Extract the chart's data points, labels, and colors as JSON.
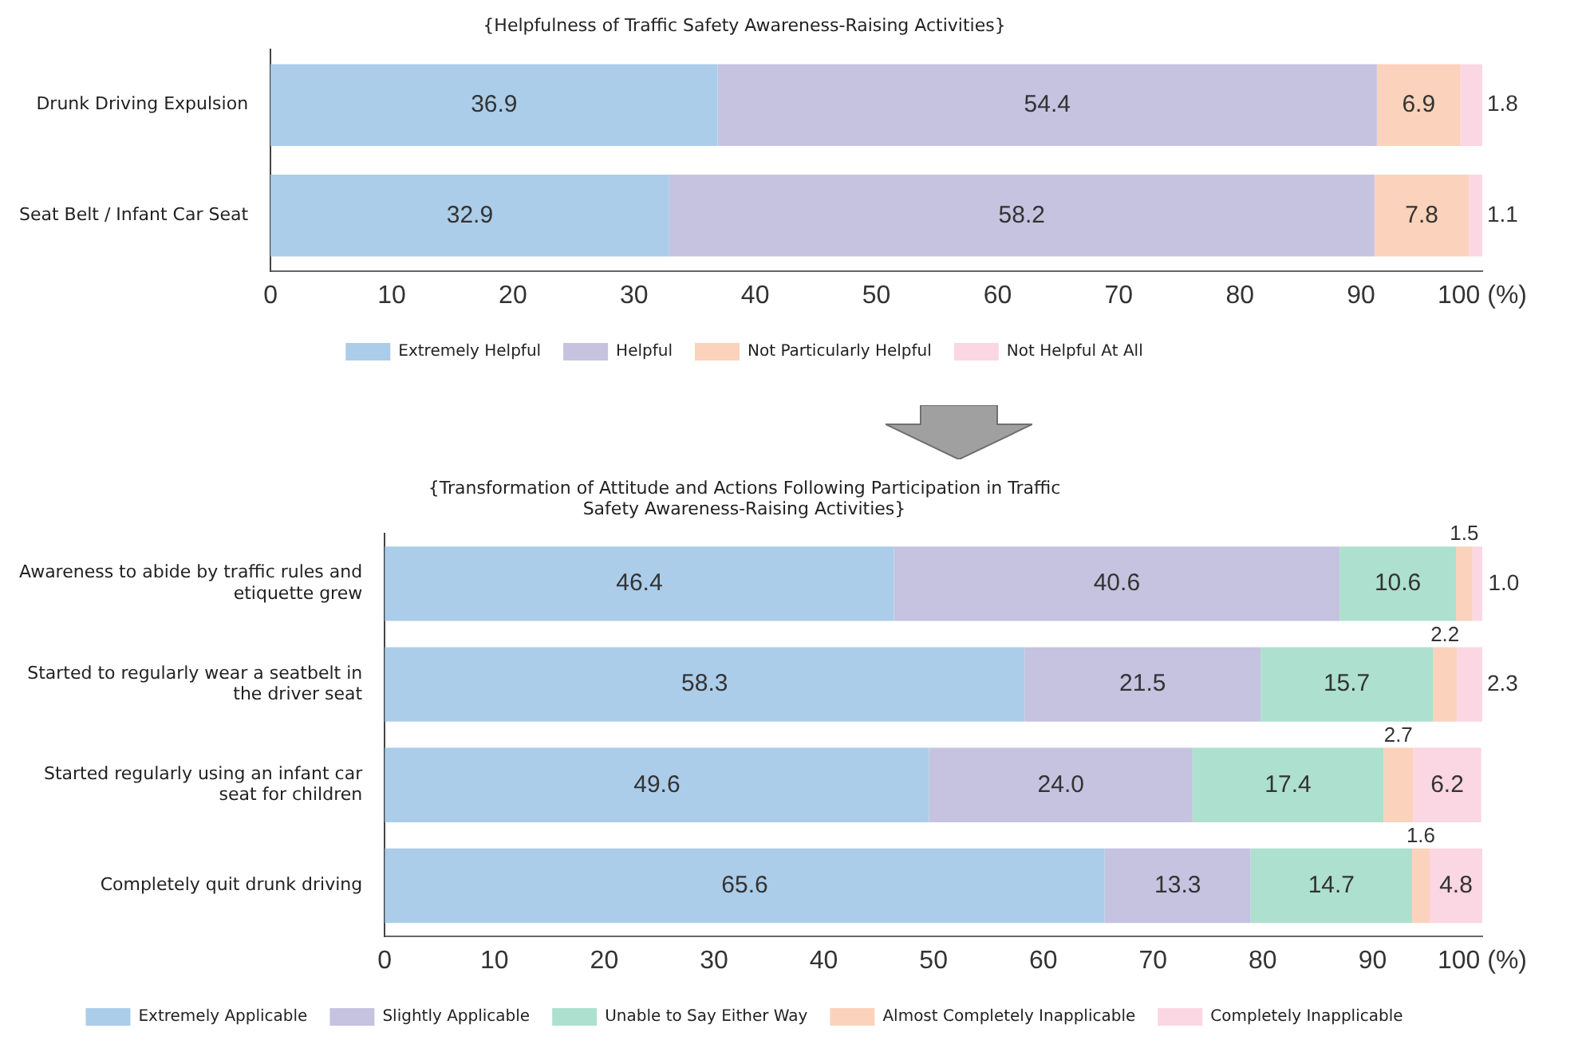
{
  "chart_data": [
    {
      "type": "bar",
      "orientation": "horizontal",
      "stacked": true,
      "title": "{Helpfulness of Traffic Safety Awareness-Raising Activities}",
      "categories": [
        "Drunk Driving Expulsion",
        "Seat Belt / Infant Car Seat"
      ],
      "series": [
        {
          "name": "Extremely Helpful",
          "color": "#abcdea",
          "values": [
            36.9,
            32.9
          ],
          "value_labels": [
            "36.9",
            "32.9"
          ]
        },
        {
          "name": "Helpful",
          "color": "#c5c3e0",
          "values": [
            54.4,
            58.2
          ],
          "value_labels": [
            "54.4",
            "58.2"
          ]
        },
        {
          "name": "Not Particularly Helpful",
          "color": "#fbd2bb",
          "values": [
            6.9,
            7.8
          ],
          "value_labels": [
            "6.9",
            "7.8"
          ]
        },
        {
          "name": "Not Helpful At All",
          "color": "#fbd6e3",
          "values": [
            1.8,
            1.1
          ],
          "value_labels": [
            "1.8",
            "1.1"
          ]
        }
      ],
      "xlim": [
        0,
        100
      ],
      "xticks": [
        0,
        10,
        20,
        30,
        40,
        50,
        60,
        70,
        80,
        90,
        {
          "value": 100,
          "label": "100 (%)"
        }
      ],
      "grid": false,
      "legend": "bottom"
    },
    {
      "type": "bar",
      "orientation": "horizontal",
      "stacked": true,
      "title": "{Transformation of Attitude and Actions Following Participation in Traffic Safety Awareness-Raising Activities}",
      "categories": [
        "Awareness to abide by traffic rules and etiquette grew",
        "Started to regularly wear a seatbelt in the driver seat",
        "Started regularly using an infant car seat for children",
        "Completely quit drunk driving"
      ],
      "series": [
        {
          "name": "Extremely Applicable",
          "color": "#abcdea",
          "values": [
            46.4,
            58.3,
            49.6,
            65.6
          ],
          "value_labels": [
            "46.4",
            "58.3",
            "49.6",
            "65.6"
          ]
        },
        {
          "name": "Slightly Applicable",
          "color": "#c5c3e0",
          "values": [
            40.6,
            21.5,
            24.0,
            13.3
          ],
          "value_labels": [
            "40.6",
            "21.5",
            "24.0",
            "13.3"
          ]
        },
        {
          "name": "Unable to Say Either Way",
          "color": "#ade0cf",
          "values": [
            10.6,
            15.7,
            17.4,
            14.7
          ],
          "value_labels": [
            "10.6",
            "15.7",
            "17.4",
            "14.7"
          ]
        },
        {
          "name": "Almost Completely Inapplicable",
          "color": "#fbd2bb",
          "values": [
            1.5,
            2.2,
            2.7,
            1.6
          ],
          "value_labels": [
            "1.5",
            "2.2",
            "2.7",
            "1.6"
          ]
        },
        {
          "name": "Completely Inapplicable",
          "color": "#fbd6e3",
          "values": [
            1.0,
            2.3,
            6.2,
            4.8
          ],
          "value_labels": [
            "1.0",
            "2.3",
            "6.2",
            "4.8"
          ]
        }
      ],
      "xlim": [
        0,
        100
      ],
      "xticks": [
        0,
        10,
        20,
        30,
        40,
        50,
        60,
        70,
        80,
        90,
        {
          "value": 100,
          "label": "100 (%)"
        }
      ],
      "grid": false,
      "legend": "bottom"
    }
  ]
}
